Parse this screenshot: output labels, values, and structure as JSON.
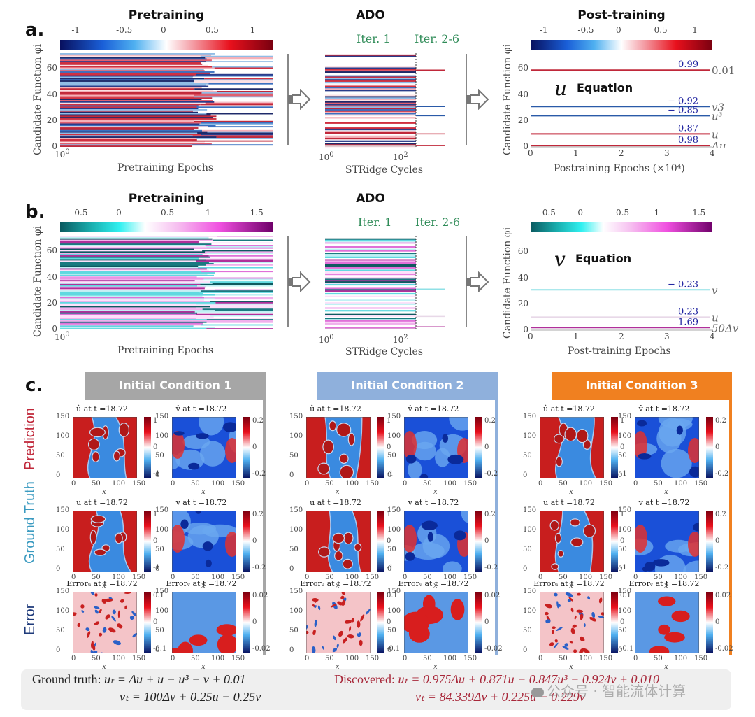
{
  "panels": {
    "a": {
      "letter": "a.",
      "pretraining": {
        "title": "Pretraining",
        "cbar_ticks": [
          "-1",
          "-0.5",
          "0",
          "0.5",
          "1"
        ],
        "y_ticks": [
          "0",
          "20",
          "40",
          "60"
        ],
        "x_tick": "10^0",
        "xlabel": "Pretraining Epochs",
        "ylabel": "Candidate Function φi"
      },
      "ado": {
        "title": "ADO",
        "iter1": "Iter. 1",
        "iter2": "Iter. 2-6",
        "x_ticks": [
          "10^0",
          "10^2"
        ],
        "xlabel": "STRidge Cycles"
      },
      "post": {
        "title": "Post-training",
        "cbar_ticks": [
          "-1",
          "-0.5",
          "0",
          "0.5",
          "1"
        ],
        "y_ticks": [
          "0",
          "20",
          "40",
          "60"
        ],
        "x_ticks": [
          "0",
          "1",
          "2",
          "3",
          "4"
        ],
        "xlabel": "Postraining Epochs (×10⁴)",
        "ylabel": "Candidate Function φi",
        "eq_var": "u",
        "eq_label": "Equation",
        "lines": [
          {
            "coef": "0.99",
            "term": "0.01",
            "phi": 59,
            "color": "#c0283a"
          },
          {
            "coef": "− 0.92",
            "term": "v3",
            "phi": 31,
            "color": "#2a5aa8"
          },
          {
            "coef": "− 0.85",
            "term": "u³",
            "phi": 24,
            "color": "#2a5aa8"
          },
          {
            "coef": "0.87",
            "term": "u",
            "phi": 10,
            "color": "#c0283a"
          },
          {
            "coef": "0.98",
            "term": "Δu",
            "phi": 1,
            "color": "#c0283a"
          }
        ]
      }
    },
    "b": {
      "letter": "b.",
      "pretraining": {
        "title": "Pretraining",
        "cbar_ticks": [
          "-0.5",
          "0",
          "0.5",
          "1",
          "1.5"
        ],
        "y_ticks": [
          "0",
          "20",
          "40",
          "60"
        ],
        "x_tick": "10^0",
        "xlabel": "Pretraining Epochs",
        "ylabel": "Candidate Function φi"
      },
      "ado": {
        "title": "ADO",
        "iter1": "Iter. 1",
        "iter2": "Iter. 2-6",
        "x_ticks": [
          "10^0",
          "10^2"
        ],
        "xlabel": "STRidge Cycles"
      },
      "post": {
        "cbar_ticks": [
          "-0.5",
          "0",
          "0.5",
          "1",
          "1.5"
        ],
        "y_ticks": [
          "0",
          "20",
          "40",
          "60"
        ],
        "x_ticks": [
          "0",
          "1",
          "2",
          "3",
          "4"
        ],
        "xlabel": "Post-training Epochs",
        "ylabel": "Candidate Function φi",
        "eq_var": "v",
        "eq_label": "Equation",
        "lines": [
          {
            "coef": "− 0.23",
            "term": "v",
            "phi": 31,
            "color": "#8fe0e6"
          },
          {
            "coef": "0.23",
            "term": "u",
            "phi": 10,
            "color": "#e8d8e8"
          },
          {
            "coef": "1.69",
            "term": "50Δv",
            "phi": 2,
            "color": "#b0309a"
          }
        ]
      }
    },
    "c": {
      "letter": "c.",
      "row_labels": [
        {
          "text": "Prediction",
          "color": "#c0283a"
        },
        {
          "text": "Ground Truth",
          "color": "#3a9ac0"
        },
        {
          "text": "Error",
          "color": "#1e3a7a"
        }
      ],
      "conditions": [
        {
          "title": "Initial Condition 1",
          "color": "#a6a6a6"
        },
        {
          "title": "Initial Condition 2",
          "color": "#8fb0dc"
        },
        {
          "title": "Initial Condition 3",
          "color": "#f08020"
        }
      ],
      "map_titles": [
        [
          "û at t =18.72",
          "v̂ at t =18.72"
        ],
        [
          "u at t =18.72",
          "v at t =18.72"
        ],
        [
          "Errorᵤ at t =18.72",
          "Errorᵥ at t =18.72"
        ]
      ],
      "axis_ticks": [
        "0",
        "50",
        "100",
        "150"
      ],
      "xlabel": "x",
      "ylabel": "y",
      "cbar_u": [
        "1",
        "0",
        "-1"
      ],
      "cbar_v": [
        "0.2",
        "0",
        "-0.2"
      ],
      "cbar_eu": [
        "0.1",
        "0",
        "-0.1"
      ],
      "cbar_ev": [
        "0.02",
        "0",
        "-0.02"
      ]
    }
  },
  "equations": {
    "ground_truth_label": "Ground truth:",
    "ground_truth_u": "uₜ = Δu + u − u³ − v + 0.01",
    "ground_truth_v": "vₜ = 100Δv + 0.25u − 0.25v",
    "discovered_label": "Discovered:",
    "discovered_u": "uₜ = 0.975Δu + 0.871u − 0.847u³ − 0.924v + 0.010",
    "discovered_v": "vₜ = 84.339Δv + 0.225u − 0.229v",
    "watermark": "公众号 · 智能流体计算"
  },
  "colors": {
    "red": "#c0283a",
    "blue": "#2a5aa8",
    "teal": "#1a8a8a",
    "magenta": "#b0309a",
    "green": "#2e8b57"
  }
}
